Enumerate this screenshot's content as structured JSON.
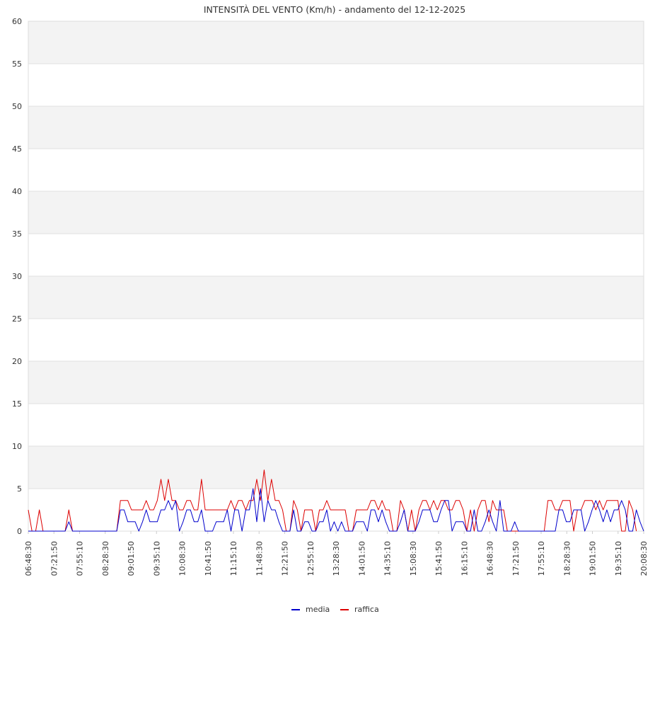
{
  "chart_data": {
    "type": "line",
    "title": "INTENSITÀ DEL VENTO (Km/h) - andamento del 12-12-2025",
    "xlabel": "",
    "ylabel": "",
    "ylim": [
      0,
      60
    ],
    "yticks": [
      0,
      5,
      10,
      15,
      20,
      25,
      30,
      35,
      40,
      45,
      50,
      55,
      60
    ],
    "grid": true,
    "legend_position": "bottom-center",
    "x_tick_labels": [
      "06:48:30",
      "07:21:50",
      "07:55:10",
      "08:28:30",
      "09:01:50",
      "09:35:10",
      "10:08:30",
      "10:41:50",
      "11:15:10",
      "11:48:30",
      "12:21:50",
      "12:55:10",
      "13:28:30",
      "14:01:50",
      "14:35:10",
      "15:08:30",
      "15:41:50",
      "16:15:10",
      "16:48:30",
      "17:21:50",
      "17:55:10",
      "18:28:30",
      "19:01:50",
      "19:35:10",
      "20:08:30"
    ],
    "series": [
      {
        "name": "media",
        "color": "#0000cc",
        "values": [
          0,
          0,
          0,
          0,
          0,
          0,
          0,
          0,
          0,
          0,
          0,
          1.1,
          0,
          0,
          0,
          0,
          0,
          0,
          0,
          0,
          0,
          0,
          0,
          0,
          0,
          2.5,
          2.5,
          1.1,
          1.1,
          1.1,
          0,
          1.1,
          2.5,
          1.1,
          1.1,
          1.1,
          2.5,
          2.5,
          3.6,
          2.5,
          3.6,
          0,
          1.1,
          2.5,
          2.5,
          1.1,
          1.1,
          2.5,
          0,
          0,
          0,
          1.1,
          1.1,
          1.1,
          2.5,
          0,
          2.5,
          2.5,
          0,
          2.5,
          2.5,
          5,
          1.1,
          5,
          1.1,
          3.6,
          2.5,
          2.5,
          1.1,
          0,
          0,
          0,
          2.5,
          0,
          0,
          1.1,
          1.1,
          0,
          0,
          1.1,
          1.1,
          2.5,
          0,
          1.1,
          0,
          1.1,
          0,
          0,
          0,
          1.1,
          1.1,
          1.1,
          0,
          2.5,
          2.5,
          1.1,
          2.5,
          1.1,
          0,
          0,
          0,
          1.1,
          2.5,
          0,
          0,
          0,
          1.1,
          2.5,
          2.5,
          2.5,
          1.1,
          1.1,
          2.5,
          3.6,
          3.6,
          0,
          1.1,
          1.1,
          1.1,
          0,
          0,
          2.5,
          0,
          0,
          1.1,
          2.5,
          1.1,
          0,
          3.6,
          0,
          0,
          0,
          1.1,
          0,
          0,
          0,
          0,
          0,
          0,
          0,
          0,
          0,
          0,
          0,
          2.5,
          2.5,
          1.1,
          1.1,
          2.5,
          2.5,
          2.5,
          0,
          1.1,
          2.5,
          3.6,
          2.5,
          1.1,
          2.5,
          1.1,
          2.5,
          2.5,
          3.6,
          2.5,
          0,
          0,
          2.5,
          1.1,
          0
        ]
      },
      {
        "name": "raffica",
        "color": "#dd0000",
        "values": [
          2.5,
          0,
          0,
          2.5,
          0,
          0,
          0,
          0,
          0,
          0,
          0,
          2.5,
          0,
          0,
          0,
          0,
          0,
          0,
          0,
          0,
          0,
          0,
          0,
          0,
          0,
          3.6,
          3.6,
          3.6,
          2.5,
          2.5,
          2.5,
          2.5,
          3.6,
          2.5,
          2.5,
          3.6,
          6.1,
          3.6,
          6.1,
          3.6,
          3.6,
          2.5,
          2.5,
          3.6,
          3.6,
          2.5,
          2.5,
          6.1,
          2.5,
          2.5,
          2.5,
          2.5,
          2.5,
          2.5,
          2.5,
          3.6,
          2.5,
          3.6,
          3.6,
          2.5,
          3.6,
          3.6,
          6.1,
          3.6,
          7.2,
          3.6,
          6.1,
          3.6,
          3.6,
          2.5,
          0,
          0,
          3.6,
          2.5,
          0,
          2.5,
          2.5,
          2.5,
          0,
          2.5,
          2.5,
          3.6,
          2.5,
          2.5,
          2.5,
          2.5,
          2.5,
          0,
          0,
          2.5,
          2.5,
          2.5,
          2.5,
          3.6,
          3.6,
          2.5,
          3.6,
          2.5,
          2.5,
          0,
          0,
          3.6,
          2.5,
          0,
          2.5,
          0,
          2.5,
          3.6,
          3.6,
          2.5,
          3.6,
          2.5,
          3.6,
          3.6,
          2.5,
          2.5,
          3.6,
          3.6,
          2.5,
          0,
          2.5,
          0,
          2.5,
          3.6,
          3.6,
          1.1,
          3.6,
          2.5,
          2.5,
          2.5,
          0,
          0,
          0,
          0,
          0,
          0,
          0,
          0,
          0,
          0,
          0,
          3.6,
          3.6,
          2.5,
          2.5,
          3.6,
          3.6,
          3.6,
          0,
          2.5,
          2.5,
          3.6,
          3.6,
          3.6,
          2.5,
          3.6,
          2.5,
          3.6,
          3.6,
          3.6,
          3.6,
          0,
          0,
          3.6,
          2.5,
          0
        ]
      }
    ]
  }
}
